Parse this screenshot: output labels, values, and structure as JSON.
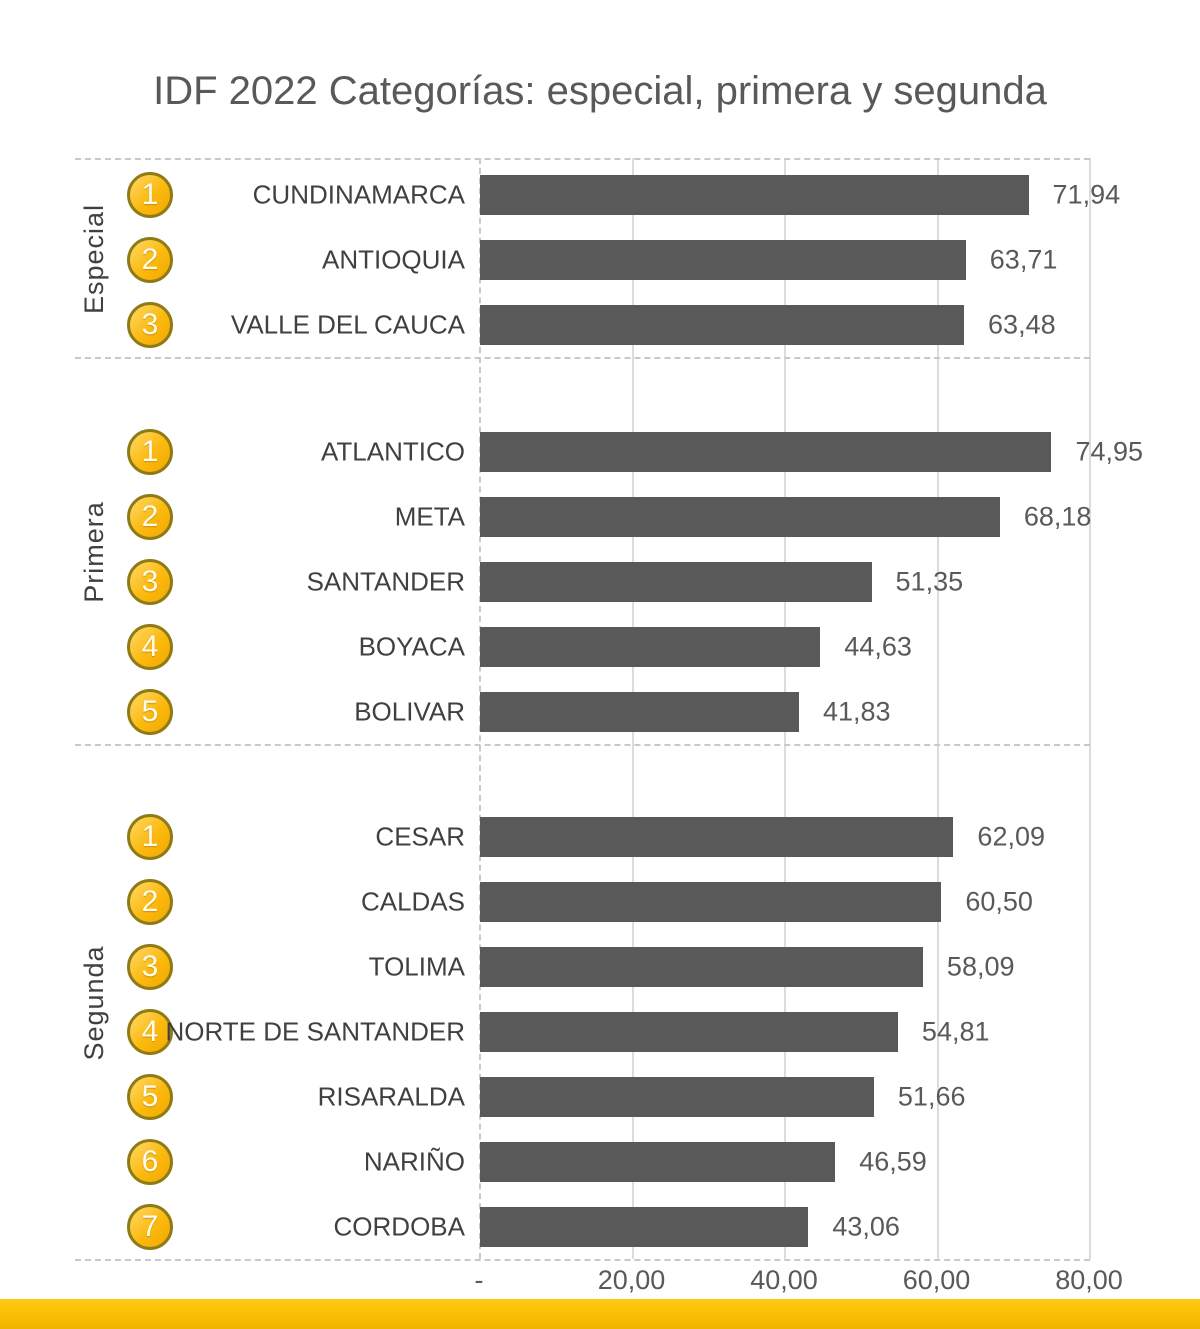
{
  "title": "IDF 2022 Categorías: especial, primera y segunda",
  "colors": {
    "bar": "#595959",
    "accent_band": "#F7BB00",
    "badge_fill": "#FBB90E",
    "badge_border": "#8F7B16",
    "gridline": "#DCDCDC",
    "dashed_line": "#C9C9C9",
    "text": "#595959"
  },
  "chart_data": {
    "type": "bar",
    "orientation": "horizontal",
    "title": "IDF 2022 Categorías: especial, primera y segunda",
    "xlim": [
      0,
      80
    ],
    "grid": true,
    "x_axis_ticks": [
      {
        "value": 0,
        "label": "-"
      },
      {
        "value": 20,
        "label": "20,00"
      },
      {
        "value": 40,
        "label": "40,00"
      },
      {
        "value": 60,
        "label": "60,00"
      },
      {
        "value": 80,
        "label": "80,00"
      }
    ],
    "groups": [
      {
        "label": "Especial",
        "items": [
          {
            "rank": "1",
            "name": "CUNDINAMARCA",
            "value": 71.94,
            "value_label": "71,94"
          },
          {
            "rank": "2",
            "name": "ANTIOQUIA",
            "value": 63.71,
            "value_label": "63,71"
          },
          {
            "rank": "3",
            "name": "VALLE DEL CAUCA",
            "value": 63.48,
            "value_label": "63,48"
          }
        ]
      },
      {
        "label": "Primera",
        "items": [
          {
            "rank": "1",
            "name": "ATLANTICO",
            "value": 74.95,
            "value_label": "74,95"
          },
          {
            "rank": "2",
            "name": "META",
            "value": 68.18,
            "value_label": "68,18"
          },
          {
            "rank": "3",
            "name": "SANTANDER",
            "value": 51.35,
            "value_label": "51,35"
          },
          {
            "rank": "4",
            "name": "BOYACA",
            "value": 44.63,
            "value_label": "44,63"
          },
          {
            "rank": "5",
            "name": "BOLIVAR",
            "value": 41.83,
            "value_label": "41,83"
          }
        ]
      },
      {
        "label": "Segunda",
        "items": [
          {
            "rank": "1",
            "name": "CESAR",
            "value": 62.09,
            "value_label": "62,09"
          },
          {
            "rank": "2",
            "name": "CALDAS",
            "value": 60.5,
            "value_label": "60,50"
          },
          {
            "rank": "3",
            "name": "TOLIMA",
            "value": 58.09,
            "value_label": "58,09"
          },
          {
            "rank": "4",
            "name": "NORTE DE SANTANDER",
            "value": 54.81,
            "value_label": "54,81"
          },
          {
            "rank": "5",
            "name": "RISARALDA",
            "value": 51.66,
            "value_label": "51,66"
          },
          {
            "rank": "6",
            "name": "NARIÑO",
            "value": 46.59,
            "value_label": "46,59"
          },
          {
            "rank": "7",
            "name": "CORDOBA",
            "value": 43.06,
            "value_label": "43,06"
          }
        ]
      }
    ]
  }
}
